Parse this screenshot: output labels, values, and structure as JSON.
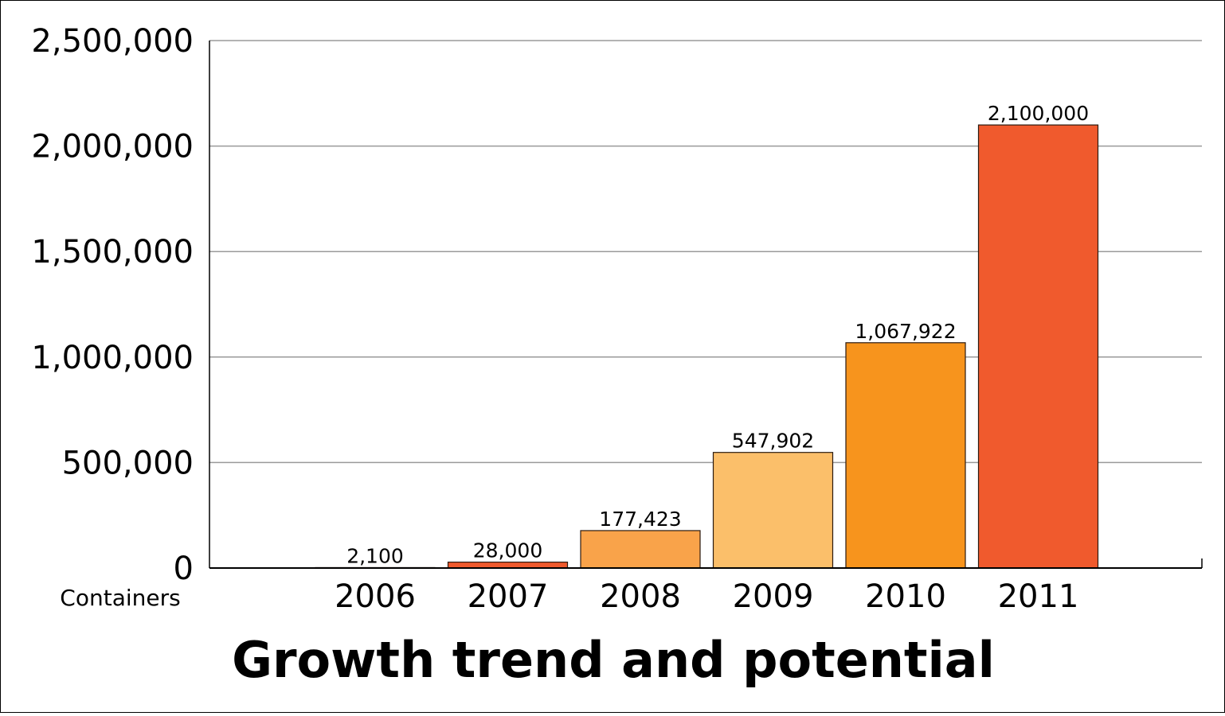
{
  "chart_data": {
    "type": "bar",
    "title": "Growth trend and potential",
    "ylabel": "Containers",
    "xlabel": "",
    "categories": [
      "2006",
      "2007",
      "2008",
      "2009",
      "2010",
      "2011"
    ],
    "values": [
      2100,
      28000,
      177423,
      547902,
      1067922,
      2100000
    ],
    "data_labels": [
      "2,100",
      "28,000",
      "177,423",
      "547,902",
      "1,067,922",
      "2,100,000"
    ],
    "y_ticks": [
      0,
      500000,
      1000000,
      1500000,
      2000000,
      2500000
    ],
    "y_tick_labels": [
      "0",
      "500,000",
      "1,000,000",
      "1,500,000",
      "2,000,000",
      "2,500,000"
    ],
    "ylim": [
      0,
      2500000
    ],
    "grid": true,
    "legend": "none",
    "bar_colors": [
      "#f05a2d",
      "#f05a2d",
      "#f9a34a",
      "#fbbf6a",
      "#f7941d",
      "#f05a2d"
    ],
    "grid_color": "#9a9a9a"
  }
}
